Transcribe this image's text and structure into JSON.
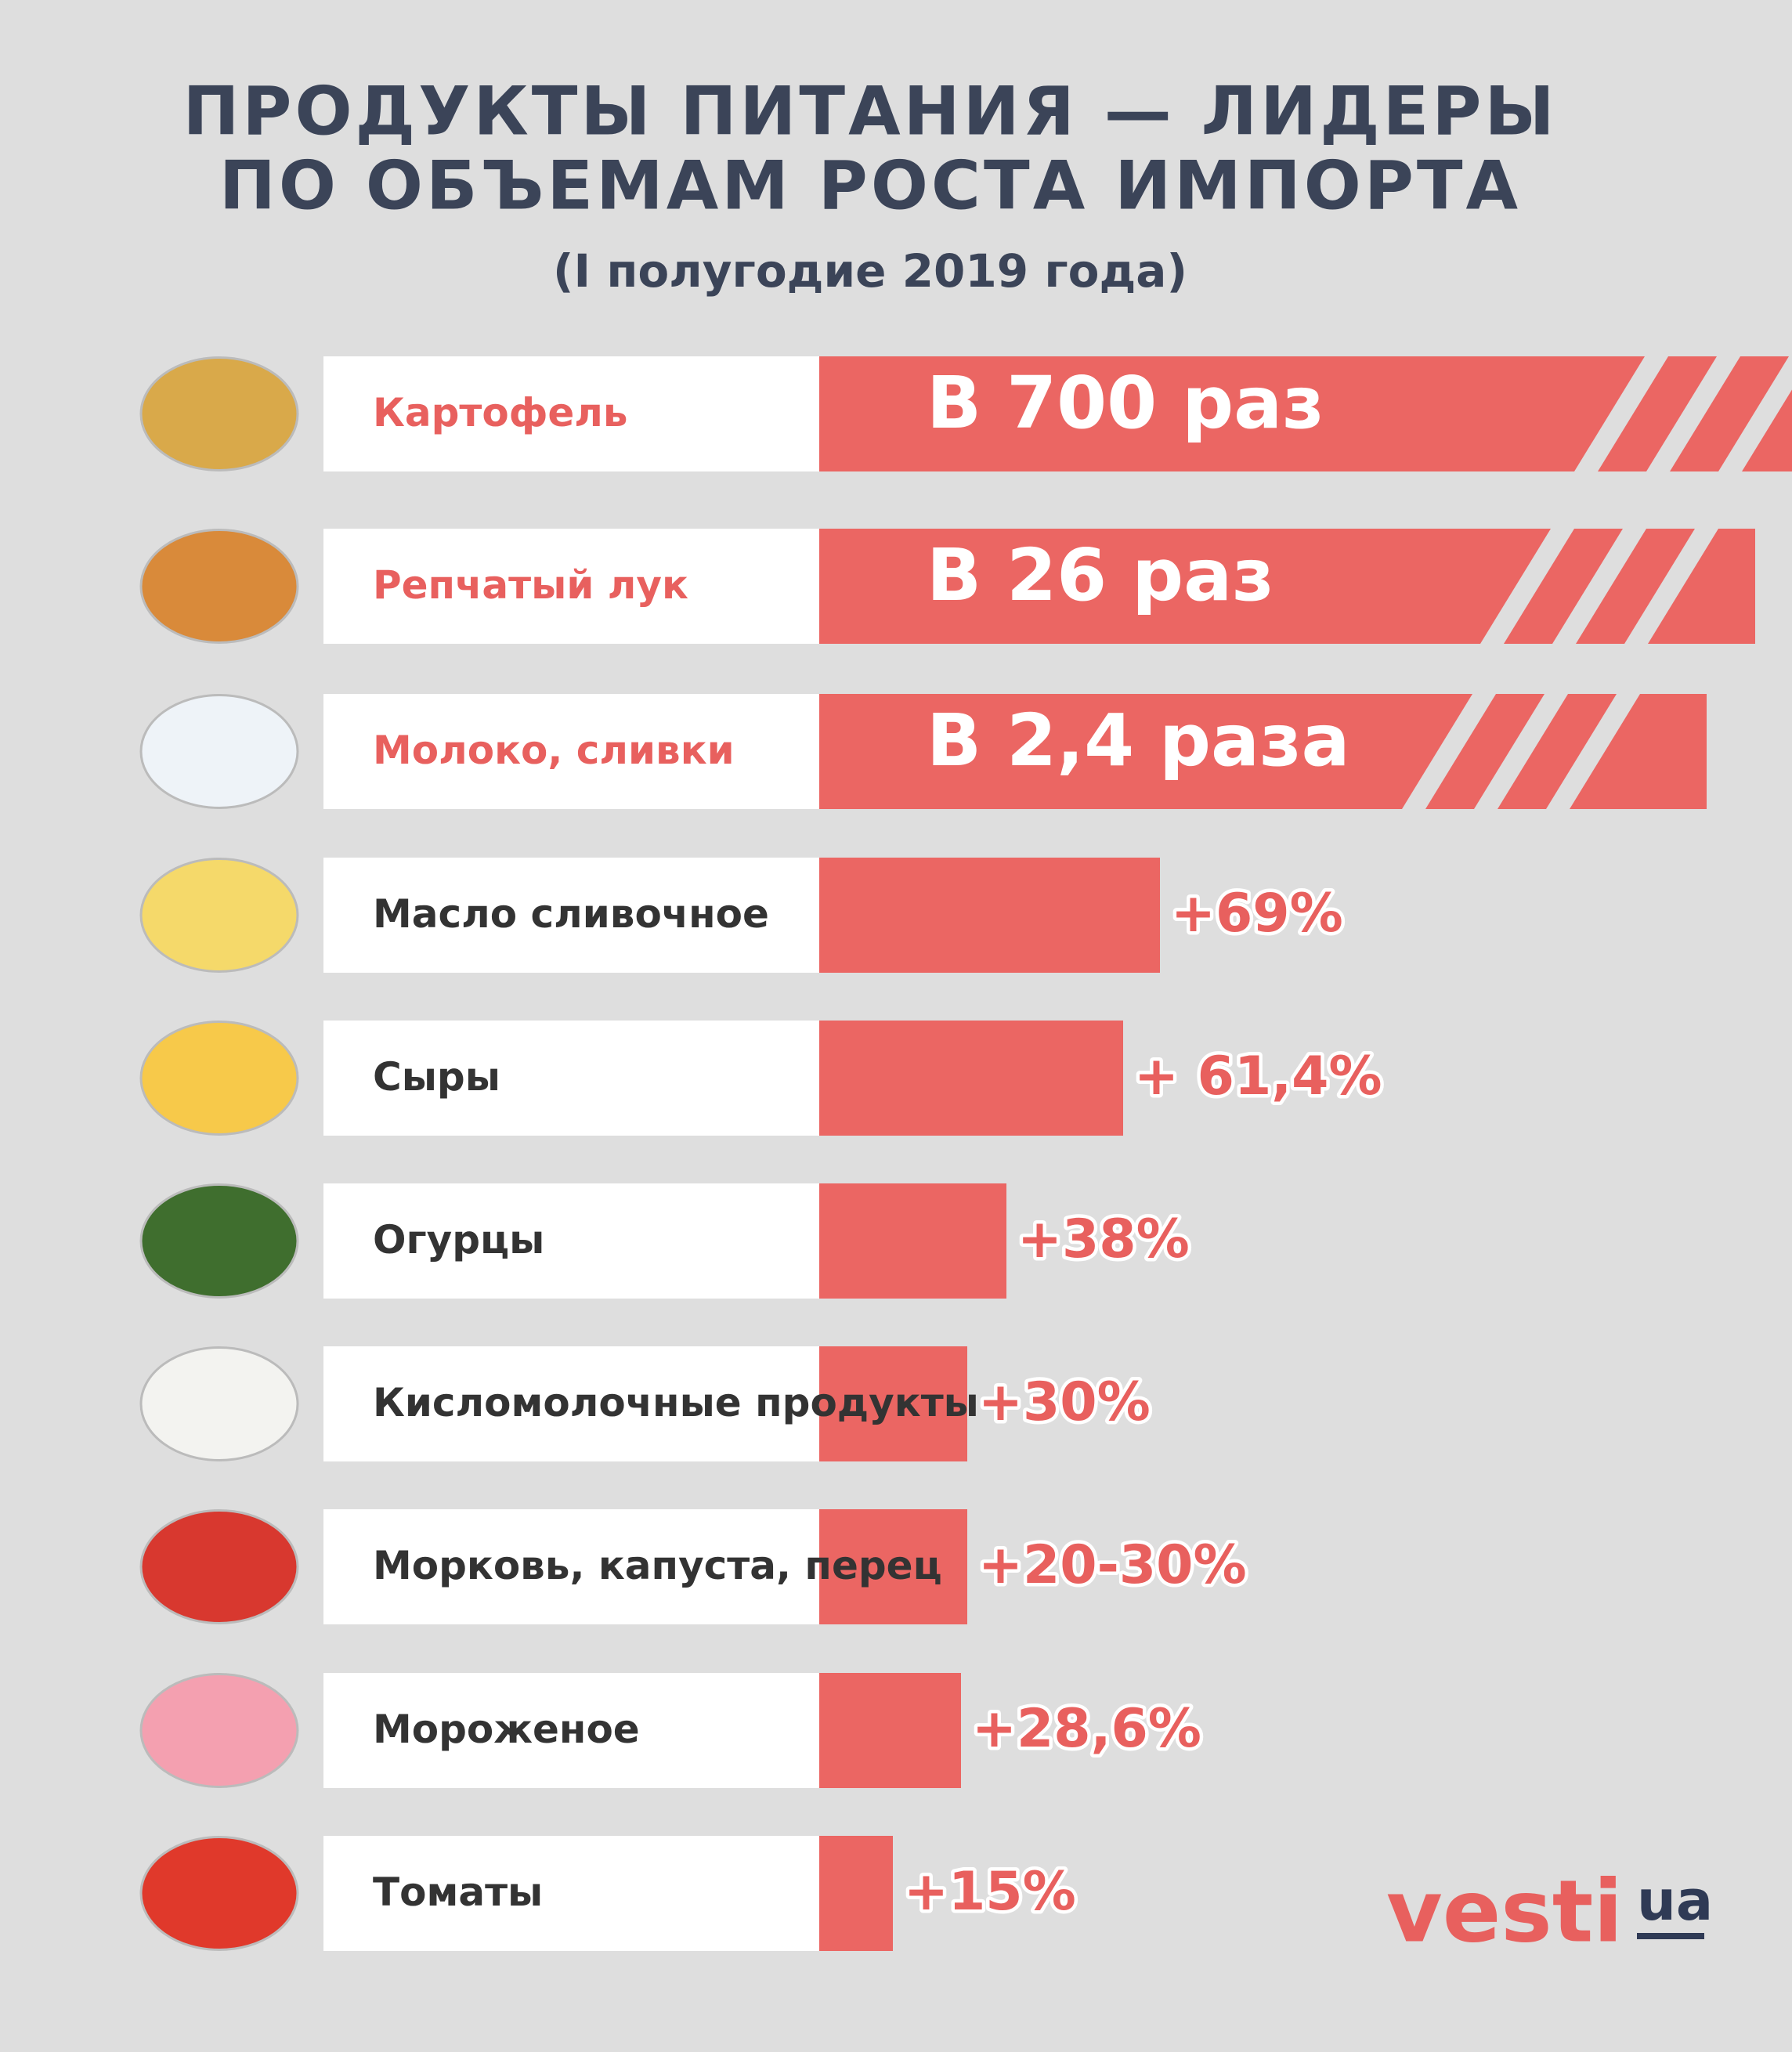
{
  "header": {
    "title_line1": "ПРОДУКТЫ ПИТАНИЯ — ЛИДЕРЫ",
    "title_line2": "ПО ОБЪЕМАМ РОСТА ИМПОРТА",
    "subtitle": "(I полугодие 2019 года)"
  },
  "items": [
    {
      "label": "Картофель",
      "value": "В 700 раз"
    },
    {
      "label": "Репчатый лук",
      "value": "В 26 раз"
    },
    {
      "label": "Молоко, сливки",
      "value": "В 2,4 раза"
    },
    {
      "label": "Масло сливочное",
      "value": "+69%"
    },
    {
      "label": "Сыры",
      "value": "+ 61,4%"
    },
    {
      "label": "Огурцы",
      "value": "+38%"
    },
    {
      "label": "Кисломолочные продукты",
      "value": "+30%"
    },
    {
      "label": "Морковь, капуста, перец",
      "value": "+20-30%"
    },
    {
      "label": "Мороженое",
      "value": "+28,6%"
    },
    {
      "label": "Томаты",
      "value": "+15%"
    }
  ],
  "logo": {
    "brand": "vesti",
    "domain": "ua"
  }
}
